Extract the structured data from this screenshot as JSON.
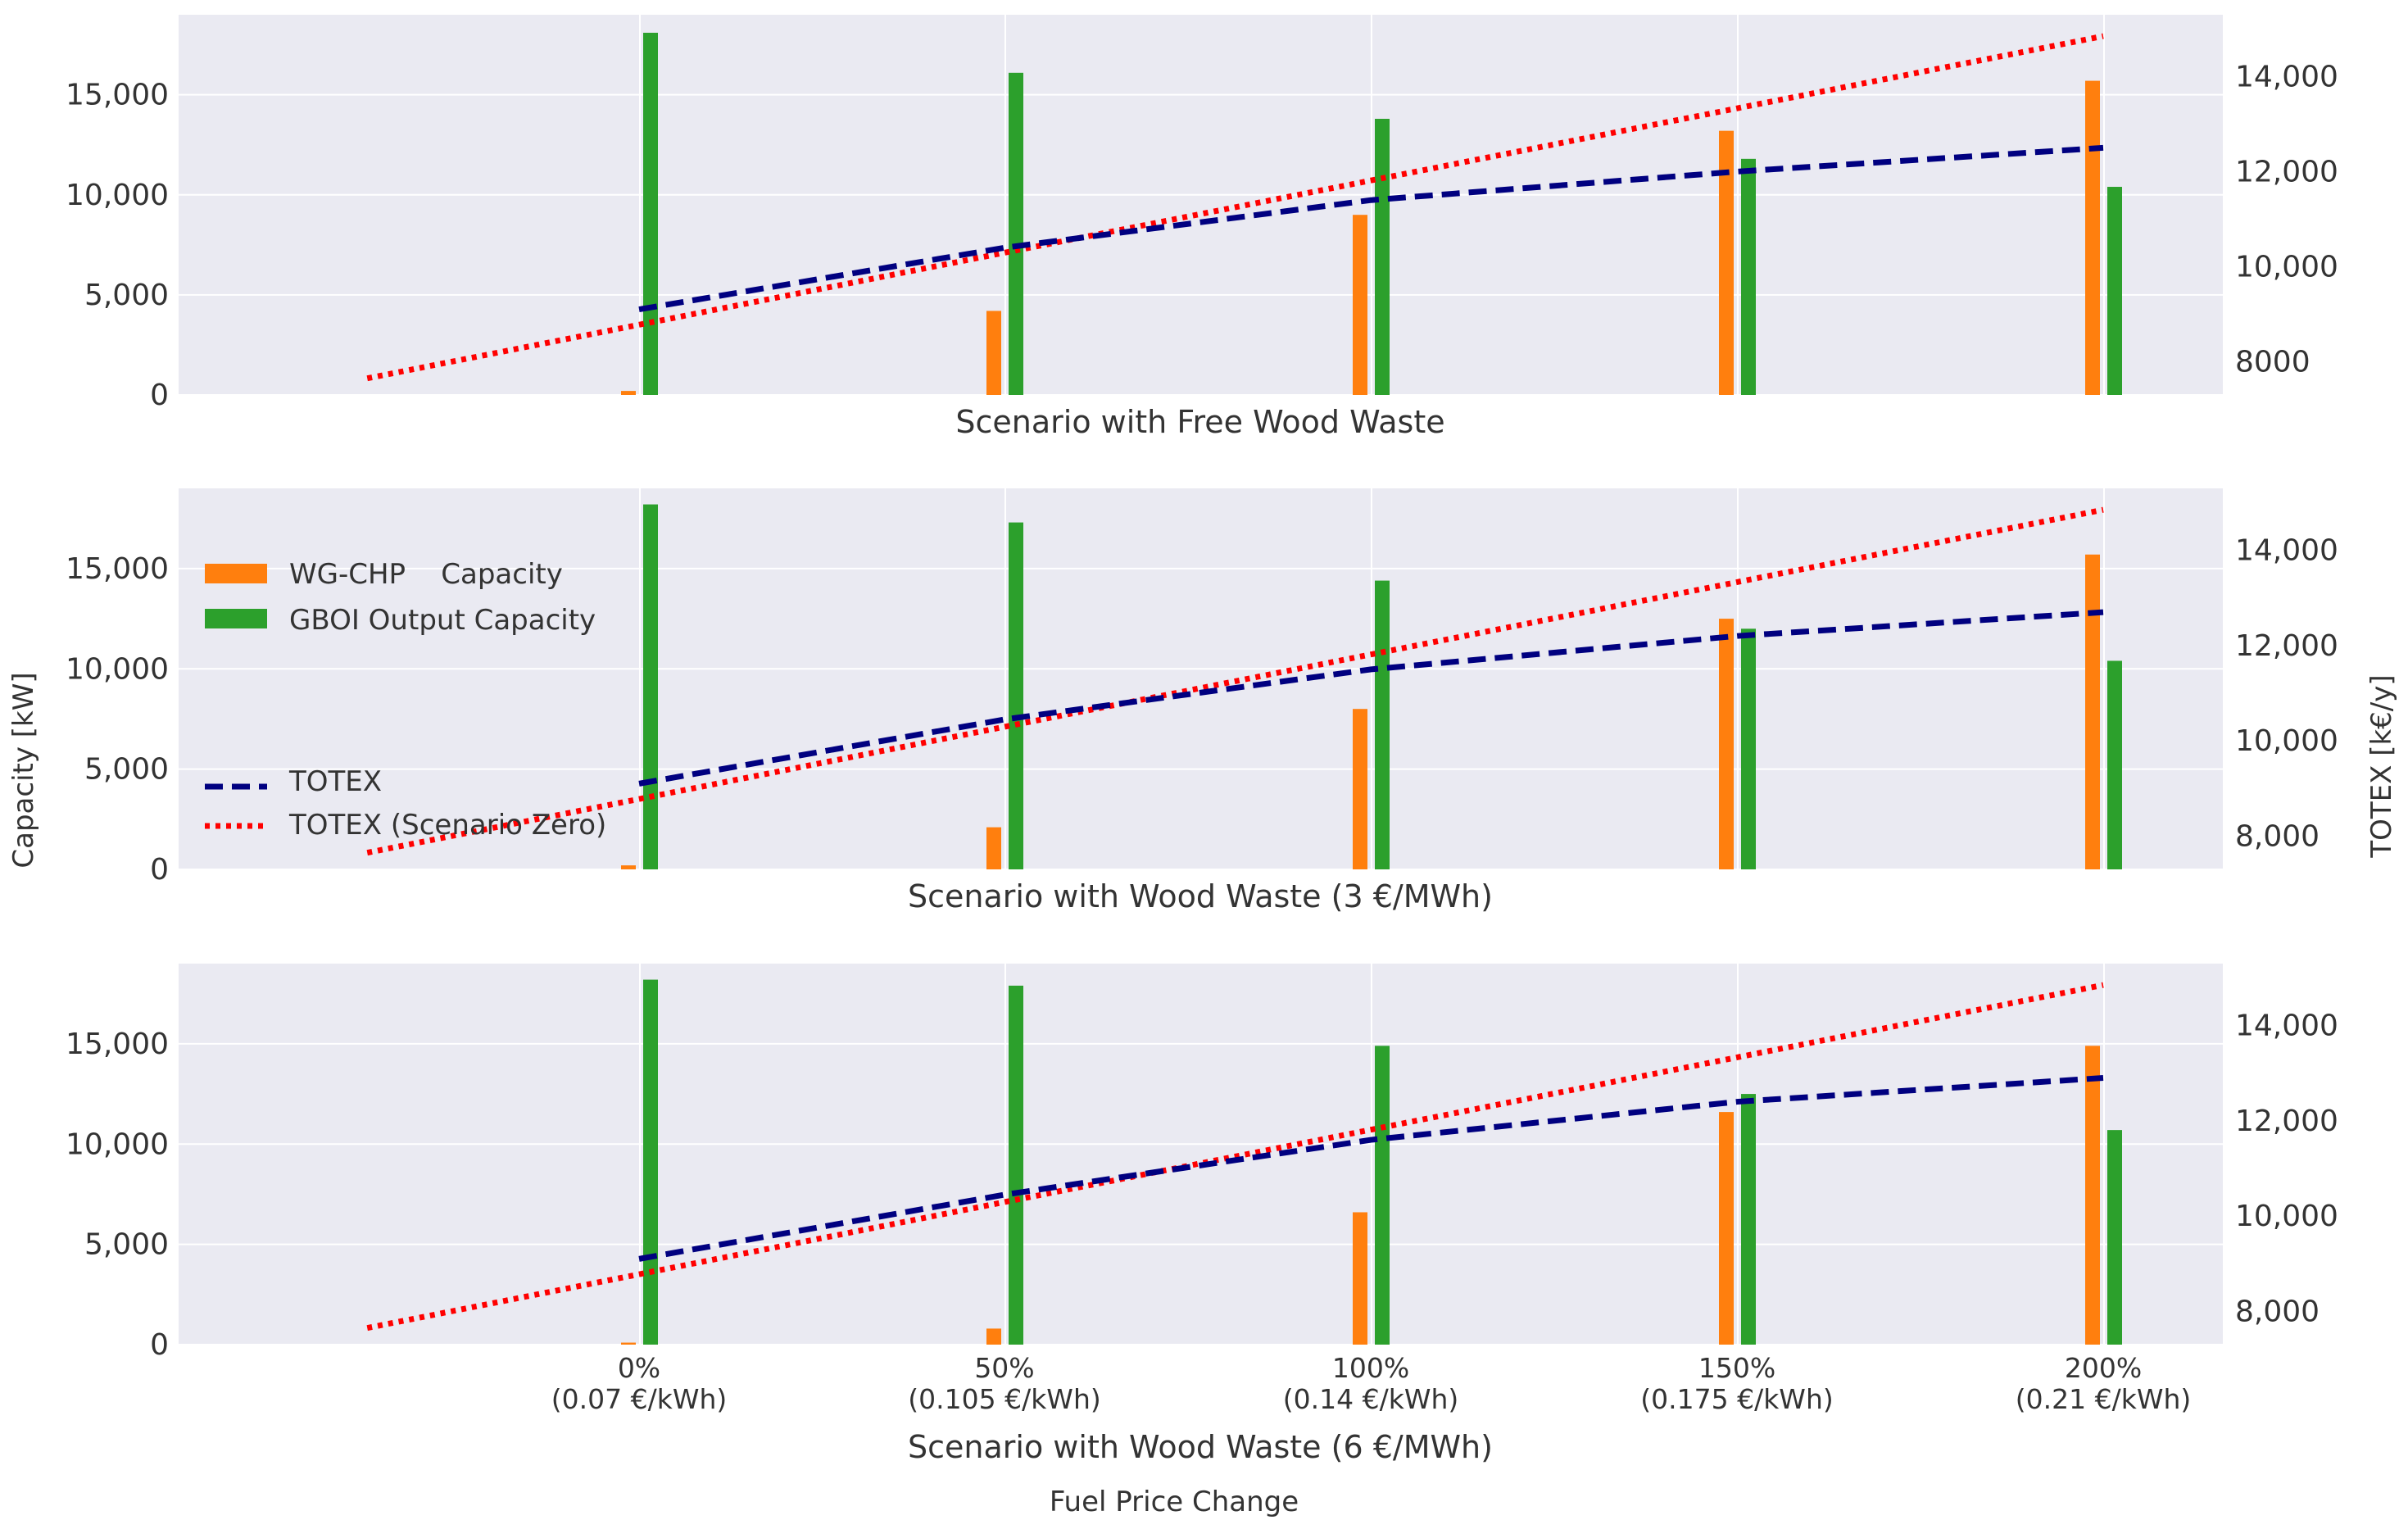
{
  "figure": {
    "ylabel_left": "Capacity [kW]",
    "ylabel_right": "TOTEX [k€/y]",
    "xlabel": "Fuel Price Change"
  },
  "colors": {
    "wgchp": "#ff7f0e",
    "gboi": "#2ca02c",
    "totex": "#000080",
    "totex_zero": "#ff0000",
    "panel_bg": "#eaeaf2",
    "grid": "#ffffff"
  },
  "legend": {
    "wgchp": "WG-CHP    Capacity",
    "gboi": "GBOI Output Capacity",
    "totex": "TOTEX",
    "totex_zero": "TOTEX (Scenario Zero)"
  },
  "chart_data": [
    {
      "type": "bar",
      "title": "Scenario with Free Wood Waste",
      "categories": [
        "0%",
        "50%",
        "100%",
        "150%",
        "200%"
      ],
      "category_sublabels": [
        "(0.07 €/kWh)",
        "(0.105 €/kWh)",
        "(0.14 €/kWh)",
        "(0.175 €/kWh)",
        "(0.21 €/kWh)"
      ],
      "ylim": [
        0,
        19000
      ],
      "yticks": [
        0,
        5000,
        10000,
        15000
      ],
      "ytick_labels": [
        "0",
        "5,000",
        "10,000",
        "15,000"
      ],
      "y2lim": [
        7300,
        15300
      ],
      "y2ticks": [
        8000,
        10000,
        12000,
        14000
      ],
      "y2tick_labels": [
        "8000",
        "10,000",
        "12,000",
        "14,000"
      ],
      "series": [
        {
          "name": "WG-CHP    Capacity",
          "kind": "bar",
          "values": [
            200,
            4200,
            9000,
            13200,
            15700
          ]
        },
        {
          "name": "GBOI Output Capacity",
          "kind": "bar",
          "values": [
            18100,
            16100,
            13800,
            11800,
            10400
          ]
        },
        {
          "name": "TOTEX",
          "kind": "line",
          "x": [
            0,
            1,
            2,
            3,
            4
          ],
          "values": [
            9100,
            10400,
            11400,
            12000,
            12500
          ]
        },
        {
          "name": "TOTEX (Scenario Zero)",
          "kind": "line",
          "x": [
            -1,
            4
          ],
          "values": [
            7650,
            14850
          ]
        }
      ]
    },
    {
      "type": "bar",
      "title": "Scenario with Wood Waste (3 €/MWh)",
      "categories": [
        "0%",
        "50%",
        "100%",
        "150%",
        "200%"
      ],
      "category_sublabels": [
        "(0.07 €/kWh)",
        "(0.105 €/kWh)",
        "(0.14 €/kWh)",
        "(0.175 €/kWh)",
        "(0.21 €/kWh)"
      ],
      "ylim": [
        0,
        19000
      ],
      "yticks": [
        0,
        5000,
        10000,
        15000
      ],
      "ytick_labels": [
        "0",
        "5,000",
        "10,000",
        "15,000"
      ],
      "y2lim": [
        7300,
        15300
      ],
      "y2ticks": [
        8000,
        10000,
        12000,
        14000
      ],
      "y2tick_labels": [
        "8,000",
        "10,000",
        "12,000",
        "14,000"
      ],
      "series": [
        {
          "name": "WG-CHP    Capacity",
          "kind": "bar",
          "values": [
            200,
            2100,
            8000,
            12500,
            15700
          ]
        },
        {
          "name": "GBOI Output Capacity",
          "kind": "bar",
          "values": [
            18200,
            17300,
            14400,
            12000,
            10400
          ]
        },
        {
          "name": "TOTEX",
          "kind": "line",
          "x": [
            0,
            1,
            2,
            3,
            4
          ],
          "values": [
            9100,
            10450,
            11500,
            12200,
            12700
          ]
        },
        {
          "name": "TOTEX (Scenario Zero)",
          "kind": "line",
          "x": [
            -1,
            4
          ],
          "values": [
            7650,
            14850
          ]
        }
      ]
    },
    {
      "type": "bar",
      "title": "Scenario with Wood Waste (6 €/MWh)",
      "categories": [
        "0%",
        "50%",
        "100%",
        "150%",
        "200%"
      ],
      "category_sublabels": [
        "(0.07 €/kWh)",
        "(0.105 €/kWh)",
        "(0.14 €/kWh)",
        "(0.175 €/kWh)",
        "(0.21 €/kWh)"
      ],
      "ylim": [
        0,
        19000
      ],
      "yticks": [
        0,
        5000,
        10000,
        15000
      ],
      "ytick_labels": [
        "0",
        "5,000",
        "10,000",
        "15,000"
      ],
      "y2lim": [
        7300,
        15300
      ],
      "y2ticks": [
        8000,
        10000,
        12000,
        14000
      ],
      "y2tick_labels": [
        "8,000",
        "10,000",
        "12,000",
        "14,000"
      ],
      "series": [
        {
          "name": "WG-CHP    Capacity",
          "kind": "bar",
          "values": [
            100,
            800,
            6600,
            11600,
            14900
          ]
        },
        {
          "name": "GBOI Output Capacity",
          "kind": "bar",
          "values": [
            18200,
            17900,
            14900,
            12500,
            10700
          ]
        },
        {
          "name": "TOTEX",
          "kind": "line",
          "x": [
            0,
            1,
            2,
            3,
            4
          ],
          "values": [
            9100,
            10450,
            11600,
            12400,
            12900
          ]
        },
        {
          "name": "TOTEX (Scenario Zero)",
          "kind": "line",
          "x": [
            -1,
            4
          ],
          "values": [
            7650,
            14850
          ]
        }
      ]
    }
  ]
}
